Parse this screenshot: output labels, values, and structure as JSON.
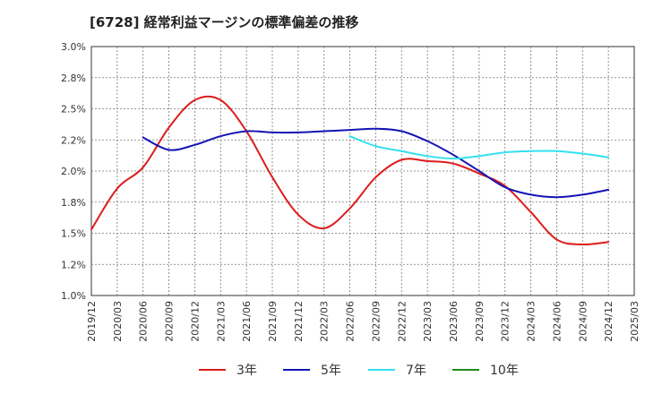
{
  "chart_data": {
    "type": "line",
    "title": "[6728]  経常利益マージンの標準偏差の推移",
    "xlabel": "",
    "ylabel": "",
    "x_ticks": [
      "2019/12",
      "2020/03",
      "2020/06",
      "2020/09",
      "2020/12",
      "2021/03",
      "2021/06",
      "2021/09",
      "2021/12",
      "2022/03",
      "2022/06",
      "2022/09",
      "2022/12",
      "2023/03",
      "2023/06",
      "2023/09",
      "2023/12",
      "2024/03",
      "2024/06",
      "2024/09",
      "2024/12",
      "2025/03"
    ],
    "y_ticks": [
      "1.0%",
      "1.2%",
      "1.5%",
      "1.8%",
      "2.0%",
      "2.2%",
      "2.5%",
      "2.8%",
      "3.0%"
    ],
    "ylim": [
      1.0,
      3.0
    ],
    "grid": true,
    "legend_position": "bottom",
    "series": [
      {
        "name": "3年",
        "color": "#dd1c1c",
        "points": [
          [
            "2019/12",
            1.53
          ],
          [
            "2020/03",
            1.86
          ],
          [
            "2020/06",
            2.03
          ],
          [
            "2020/09",
            2.35
          ],
          [
            "2020/12",
            2.57
          ],
          [
            "2021/03",
            2.57
          ],
          [
            "2021/06",
            2.32
          ],
          [
            "2021/09",
            1.95
          ],
          [
            "2021/12",
            1.65
          ],
          [
            "2022/03",
            1.54
          ],
          [
            "2022/06",
            1.7
          ],
          [
            "2022/09",
            1.95
          ],
          [
            "2022/12",
            2.09
          ],
          [
            "2023/03",
            2.08
          ],
          [
            "2023/06",
            2.06
          ],
          [
            "2023/09",
            1.98
          ],
          [
            "2023/12",
            1.88
          ],
          [
            "2024/03",
            1.67
          ],
          [
            "2024/06",
            1.45
          ],
          [
            "2024/09",
            1.41
          ],
          [
            "2024/12",
            1.43
          ]
        ]
      },
      {
        "name": "5年",
        "color": "#1414b4",
        "points": [
          [
            "2020/06",
            2.27
          ],
          [
            "2020/09",
            2.17
          ],
          [
            "2020/12",
            2.21
          ],
          [
            "2021/03",
            2.28
          ],
          [
            "2021/06",
            2.32
          ],
          [
            "2021/09",
            2.31
          ],
          [
            "2021/12",
            2.31
          ],
          [
            "2022/03",
            2.32
          ],
          [
            "2022/06",
            2.33
          ],
          [
            "2022/09",
            2.34
          ],
          [
            "2022/12",
            2.32
          ],
          [
            "2023/03",
            2.24
          ],
          [
            "2023/06",
            2.13
          ],
          [
            "2023/09",
            2.0
          ],
          [
            "2023/12",
            1.87
          ],
          [
            "2024/03",
            1.81
          ],
          [
            "2024/06",
            1.79
          ],
          [
            "2024/09",
            1.81
          ],
          [
            "2024/12",
            1.85
          ]
        ]
      },
      {
        "name": "7年",
        "color": "#33e0f0",
        "points": [
          [
            "2022/06",
            2.28
          ],
          [
            "2022/09",
            2.2
          ],
          [
            "2022/12",
            2.16
          ],
          [
            "2023/03",
            2.12
          ],
          [
            "2023/06",
            2.1
          ],
          [
            "2023/09",
            2.12
          ],
          [
            "2023/12",
            2.15
          ],
          [
            "2024/03",
            2.16
          ],
          [
            "2024/06",
            2.16
          ],
          [
            "2024/09",
            2.14
          ],
          [
            "2024/12",
            2.11
          ]
        ]
      },
      {
        "name": "10年",
        "color": "#1f8a1f",
        "points": []
      }
    ]
  }
}
